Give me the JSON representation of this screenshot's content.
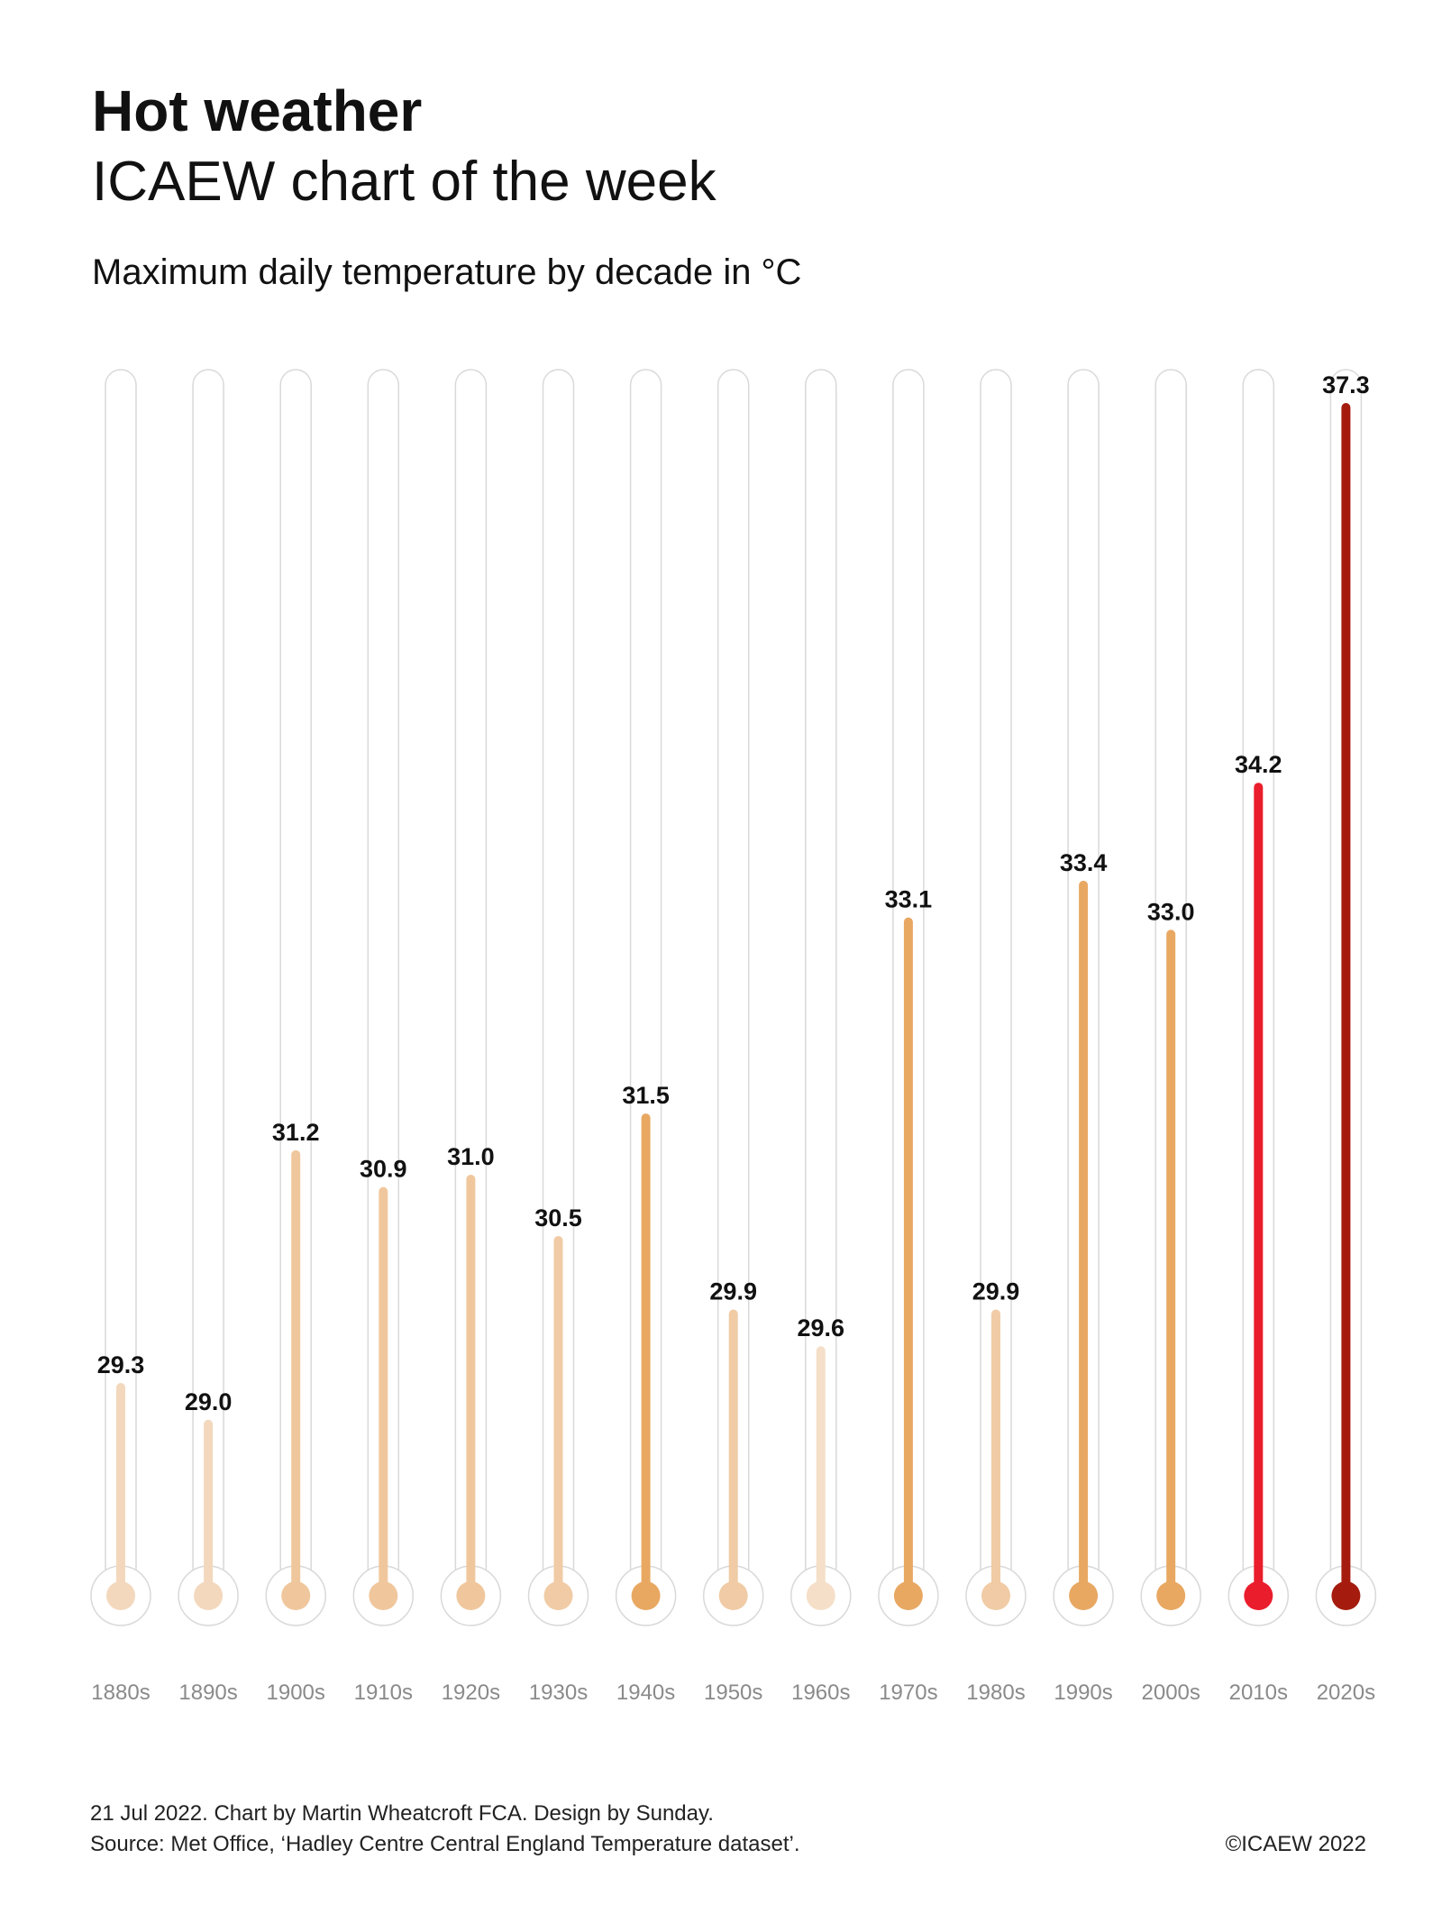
{
  "header": {
    "title": "Hot weather",
    "subtitle": "ICAEW chart of the week"
  },
  "chart_data": {
    "type": "bar",
    "title": "Maximum daily temperature by decade in °C",
    "categories": [
      "1880s",
      "1890s",
      "1900s",
      "1910s",
      "1920s",
      "1930s",
      "1940s",
      "1950s",
      "1960s",
      "1970s",
      "1980s",
      "1990s",
      "2000s",
      "2010s",
      "2020s"
    ],
    "values": [
      29.3,
      29.0,
      31.2,
      30.9,
      31.0,
      30.5,
      31.5,
      29.9,
      29.6,
      33.1,
      29.9,
      33.4,
      33.0,
      34.2,
      37.3
    ],
    "value_labels": [
      "29.3",
      "29.0",
      "31.2",
      "30.9",
      "31.0",
      "30.5",
      "31.5",
      "29.9",
      "29.6",
      "33.1",
      "29.9",
      "33.4",
      "33.0",
      "34.2",
      "37.3"
    ],
    "colors": [
      "#f3d8bd",
      "#f3d8bd",
      "#f0c79d",
      "#f0c79d",
      "#f0c79d",
      "#f0cba5",
      "#e8a862",
      "#f0cba5",
      "#f5dfc8",
      "#e8a862",
      "#f0cba5",
      "#e8a862",
      "#e8a862",
      "#ea1d2c",
      "#a51c0e"
    ],
    "ylim": [
      27.6,
      37.3
    ],
    "style": "thermometer",
    "grid": false,
    "legend": "none"
  },
  "footer": {
    "line1": "21 Jul 2022.   Chart by Martin Wheatcroft FCA. Design by Sunday.",
    "line2": "Source: Met Office, ‘Hadley Centre Central England Temperature dataset’.",
    "copyright": "©ICAEW 2022"
  }
}
